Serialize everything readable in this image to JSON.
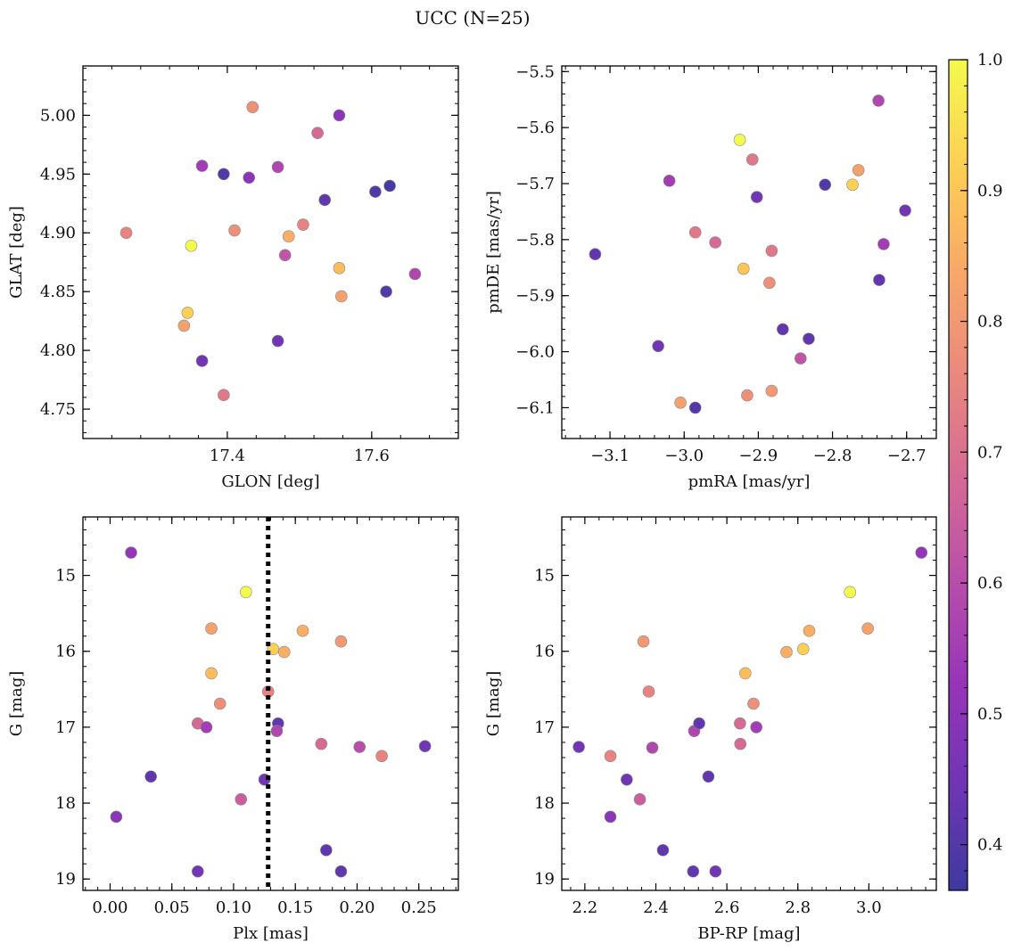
{
  "figure": {
    "title": "UCC (N=25)"
  },
  "colorbar": {
    "cmap": "plasma",
    "range": [
      0.365,
      1.0
    ],
    "ticks": [
      "0.4",
      "0.5",
      "0.6",
      "0.7",
      "0.8",
      "0.9",
      "1.0"
    ]
  },
  "chart_data": [
    {
      "type": "scatter",
      "id": "glon-glat",
      "xlabel": "GLON [deg]",
      "ylabel": "GLAT [deg]",
      "xlim": [
        17.2,
        17.72
      ],
      "ylim": [
        4.725,
        5.042
      ],
      "xticks": [
        {
          "v": 17.4,
          "t": "17.4"
        },
        {
          "v": 17.6,
          "t": "17.6"
        }
      ],
      "yticks": [
        {
          "v": 4.75,
          "t": "4.75"
        },
        {
          "v": 4.8,
          "t": "4.80"
        },
        {
          "v": 4.85,
          "t": "4.85"
        },
        {
          "v": 4.9,
          "t": "4.90"
        },
        {
          "v": 4.95,
          "t": "4.95"
        },
        {
          "v": 5.0,
          "t": "5.00"
        }
      ],
      "points": [
        {
          "x": 17.26,
          "y": 4.9,
          "c": 0.75
        },
        {
          "x": 17.35,
          "y": 4.889,
          "c": 1.0
        },
        {
          "x": 17.345,
          "y": 4.832,
          "c": 0.92
        },
        {
          "x": 17.34,
          "y": 4.821,
          "c": 0.82
        },
        {
          "x": 17.365,
          "y": 4.957,
          "c": 0.55
        },
        {
          "x": 17.365,
          "y": 4.791,
          "c": 0.45
        },
        {
          "x": 17.395,
          "y": 4.95,
          "c": 0.4
        },
        {
          "x": 17.395,
          "y": 4.762,
          "c": 0.72
        },
        {
          "x": 17.41,
          "y": 4.902,
          "c": 0.78
        },
        {
          "x": 17.43,
          "y": 4.947,
          "c": 0.5
        },
        {
          "x": 17.435,
          "y": 5.007,
          "c": 0.78
        },
        {
          "x": 17.47,
          "y": 4.956,
          "c": 0.58
        },
        {
          "x": 17.47,
          "y": 4.808,
          "c": 0.45
        },
        {
          "x": 17.48,
          "y": 4.881,
          "c": 0.62
        },
        {
          "x": 17.485,
          "y": 4.897,
          "c": 0.85
        },
        {
          "x": 17.505,
          "y": 4.907,
          "c": 0.75
        },
        {
          "x": 17.525,
          "y": 4.985,
          "c": 0.68
        },
        {
          "x": 17.535,
          "y": 4.928,
          "c": 0.42
        },
        {
          "x": 17.555,
          "y": 5.0,
          "c": 0.5
        },
        {
          "x": 17.555,
          "y": 4.87,
          "c": 0.88
        },
        {
          "x": 17.558,
          "y": 4.846,
          "c": 0.82
        },
        {
          "x": 17.605,
          "y": 4.935,
          "c": 0.4
        },
        {
          "x": 17.62,
          "y": 4.85,
          "c": 0.4
        },
        {
          "x": 17.625,
          "y": 4.94,
          "c": 0.38
        },
        {
          "x": 17.66,
          "y": 4.865,
          "c": 0.58
        }
      ]
    },
    {
      "type": "scatter",
      "id": "pm",
      "xlabel": "pmRA [mas/yr]",
      "ylabel": "pmDE [mas/yr]",
      "xlim": [
        -3.165,
        -2.66
      ],
      "ylim": [
        -6.155,
        -5.49
      ],
      "xticks": [
        {
          "v": -3.1,
          "t": "−3.1"
        },
        {
          "v": -3.0,
          "t": "−3.0"
        },
        {
          "v": -2.9,
          "t": "−2.9"
        },
        {
          "v": -2.8,
          "t": "−2.8"
        },
        {
          "v": -2.7,
          "t": "−2.7"
        }
      ],
      "yticks": [
        {
          "v": -6.1,
          "t": "−6.1"
        },
        {
          "v": -6.0,
          "t": "−6.0"
        },
        {
          "v": -5.9,
          "t": "−5.9"
        },
        {
          "v": -5.8,
          "t": "−5.8"
        },
        {
          "v": -5.7,
          "t": "−5.7"
        },
        {
          "v": -5.6,
          "t": "−5.6"
        },
        {
          "v": -5.5,
          "t": "−5.5"
        }
      ],
      "points": [
        {
          "x": -3.12,
          "y": -5.826,
          "c": 0.42
        },
        {
          "x": -3.035,
          "y": -5.99,
          "c": 0.45
        },
        {
          "x": -3.02,
          "y": -5.695,
          "c": 0.55
        },
        {
          "x": -3.005,
          "y": -6.091,
          "c": 0.82
        },
        {
          "x": -2.985,
          "y": -5.787,
          "c": 0.72
        },
        {
          "x": -2.985,
          "y": -6.1,
          "c": 0.4
        },
        {
          "x": -2.958,
          "y": -5.805,
          "c": 0.68
        },
        {
          "x": -2.925,
          "y": -5.622,
          "c": 1.0
        },
        {
          "x": -2.92,
          "y": -5.852,
          "c": 0.9
        },
        {
          "x": -2.915,
          "y": -6.078,
          "c": 0.78
        },
        {
          "x": -2.908,
          "y": -5.657,
          "c": 0.72
        },
        {
          "x": -2.902,
          "y": -5.724,
          "c": 0.45
        },
        {
          "x": -2.885,
          "y": -5.877,
          "c": 0.78
        },
        {
          "x": -2.882,
          "y": -5.82,
          "c": 0.72
        },
        {
          "x": -2.882,
          "y": -6.07,
          "c": 0.8
        },
        {
          "x": -2.867,
          "y": -5.96,
          "c": 0.42
        },
        {
          "x": -2.843,
          "y": -6.012,
          "c": 0.62
        },
        {
          "x": -2.832,
          "y": -5.977,
          "c": 0.42
        },
        {
          "x": -2.81,
          "y": -5.702,
          "c": 0.4
        },
        {
          "x": -2.773,
          "y": -5.702,
          "c": 0.92
        },
        {
          "x": -2.765,
          "y": -5.676,
          "c": 0.82
        },
        {
          "x": -2.738,
          "y": -5.552,
          "c": 0.58
        },
        {
          "x": -2.737,
          "y": -5.872,
          "c": 0.42
        },
        {
          "x": -2.731,
          "y": -5.808,
          "c": 0.55
        },
        {
          "x": -2.702,
          "y": -5.748,
          "c": 0.45
        }
      ]
    },
    {
      "type": "scatter",
      "id": "plx-g",
      "xlabel": "Plx [mas]",
      "ylabel": "G [mag]",
      "xlim": [
        -0.022,
        0.282
      ],
      "ylim": [
        19.15,
        14.23
      ],
      "vline": {
        "x": 0.128,
        "style": "dotted"
      },
      "xticks": [
        {
          "v": 0.0,
          "t": "0.00"
        },
        {
          "v": 0.05,
          "t": "0.05"
        },
        {
          "v": 0.1,
          "t": "0.10"
        },
        {
          "v": 0.15,
          "t": "0.15"
        },
        {
          "v": 0.2,
          "t": "0.20"
        },
        {
          "v": 0.25,
          "t": "0.25"
        }
      ],
      "yticks": [
        {
          "v": 15,
          "t": "15"
        },
        {
          "v": 16,
          "t": "16"
        },
        {
          "v": 17,
          "t": "17"
        },
        {
          "v": 18,
          "t": "18"
        },
        {
          "v": 19,
          "t": "19"
        }
      ],
      "points": [
        {
          "x": 0.017,
          "y": 14.7,
          "c": 0.52
        },
        {
          "x": 0.005,
          "y": 18.18,
          "c": 0.5
        },
        {
          "x": 0.033,
          "y": 17.65,
          "c": 0.42
        },
        {
          "x": 0.071,
          "y": 16.95,
          "c": 0.68
        },
        {
          "x": 0.071,
          "y": 18.9,
          "c": 0.45
        },
        {
          "x": 0.078,
          "y": 17.0,
          "c": 0.55
        },
        {
          "x": 0.082,
          "y": 15.7,
          "c": 0.82
        },
        {
          "x": 0.082,
          "y": 16.29,
          "c": 0.88
        },
        {
          "x": 0.089,
          "y": 16.69,
          "c": 0.78
        },
        {
          "x": 0.106,
          "y": 17.95,
          "c": 0.65
        },
        {
          "x": 0.11,
          "y": 15.22,
          "c": 1.0
        },
        {
          "x": 0.125,
          "y": 17.69,
          "c": 0.45
        },
        {
          "x": 0.128,
          "y": 16.53,
          "c": 0.75
        },
        {
          "x": 0.132,
          "y": 15.97,
          "c": 0.92
        },
        {
          "x": 0.136,
          "y": 16.95,
          "c": 0.42
        },
        {
          "x": 0.135,
          "y": 17.05,
          "c": 0.58
        },
        {
          "x": 0.141,
          "y": 16.01,
          "c": 0.85
        },
        {
          "x": 0.156,
          "y": 15.73,
          "c": 0.85
        },
        {
          "x": 0.171,
          "y": 17.22,
          "c": 0.68
        },
        {
          "x": 0.175,
          "y": 18.62,
          "c": 0.42
        },
        {
          "x": 0.187,
          "y": 15.87,
          "c": 0.8
        },
        {
          "x": 0.187,
          "y": 18.9,
          "c": 0.42
        },
        {
          "x": 0.202,
          "y": 17.26,
          "c": 0.6
        },
        {
          "x": 0.22,
          "y": 17.38,
          "c": 0.75
        },
        {
          "x": 0.255,
          "y": 17.25,
          "c": 0.45
        }
      ]
    },
    {
      "type": "scatter",
      "id": "color-g",
      "xlabel": "BP-RP [mag]",
      "ylabel": "G [mag]",
      "xlim": [
        2.135,
        3.19
      ],
      "ylim": [
        19.15,
        14.23
      ],
      "xticks": [
        {
          "v": 2.2,
          "t": "2.2"
        },
        {
          "v": 2.4,
          "t": "2.4"
        },
        {
          "v": 2.6,
          "t": "2.6"
        },
        {
          "v": 2.8,
          "t": "2.8"
        },
        {
          "v": 3.0,
          "t": "3.0"
        }
      ],
      "yticks": [
        {
          "v": 15,
          "t": "15"
        },
        {
          "v": 16,
          "t": "16"
        },
        {
          "v": 17,
          "t": "17"
        },
        {
          "v": 18,
          "t": "18"
        },
        {
          "v": 19,
          "t": "19"
        }
      ],
      "points": [
        {
          "x": 2.183,
          "y": 17.26,
          "c": 0.45
        },
        {
          "x": 2.272,
          "y": 17.38,
          "c": 0.75
        },
        {
          "x": 2.272,
          "y": 18.18,
          "c": 0.5
        },
        {
          "x": 2.318,
          "y": 17.69,
          "c": 0.45
        },
        {
          "x": 2.355,
          "y": 17.95,
          "c": 0.65
        },
        {
          "x": 2.365,
          "y": 15.87,
          "c": 0.8
        },
        {
          "x": 2.38,
          "y": 16.53,
          "c": 0.75
        },
        {
          "x": 2.39,
          "y": 17.27,
          "c": 0.58
        },
        {
          "x": 2.42,
          "y": 18.62,
          "c": 0.42
        },
        {
          "x": 2.505,
          "y": 18.9,
          "c": 0.42
        },
        {
          "x": 2.508,
          "y": 17.05,
          "c": 0.58
        },
        {
          "x": 2.522,
          "y": 16.95,
          "c": 0.42
        },
        {
          "x": 2.548,
          "y": 17.65,
          "c": 0.42
        },
        {
          "x": 2.568,
          "y": 18.9,
          "c": 0.45
        },
        {
          "x": 2.637,
          "y": 16.95,
          "c": 0.68
        },
        {
          "x": 2.638,
          "y": 17.22,
          "c": 0.68
        },
        {
          "x": 2.652,
          "y": 16.29,
          "c": 0.88
        },
        {
          "x": 2.675,
          "y": 16.69,
          "c": 0.78
        },
        {
          "x": 2.683,
          "y": 17.0,
          "c": 0.55
        },
        {
          "x": 2.768,
          "y": 16.01,
          "c": 0.85
        },
        {
          "x": 2.815,
          "y": 15.97,
          "c": 0.92
        },
        {
          "x": 2.832,
          "y": 15.73,
          "c": 0.85
        },
        {
          "x": 2.947,
          "y": 15.22,
          "c": 1.0
        },
        {
          "x": 2.997,
          "y": 15.7,
          "c": 0.82
        },
        {
          "x": 3.148,
          "y": 14.7,
          "c": 0.52
        }
      ]
    }
  ]
}
